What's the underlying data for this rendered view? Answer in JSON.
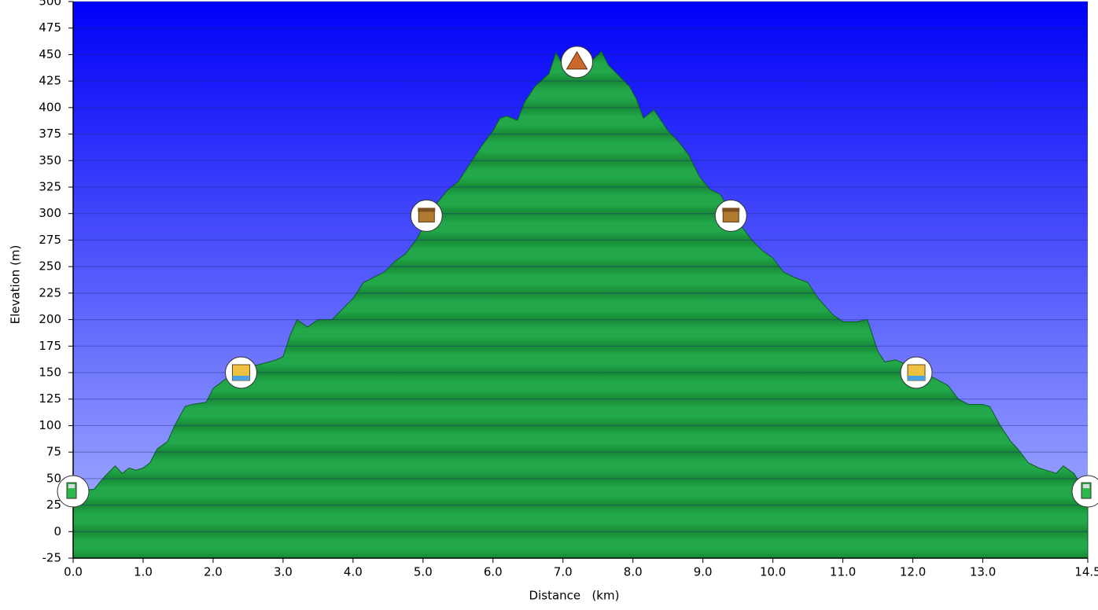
{
  "chart_data": {
    "type": "area",
    "x_label": "Distance   (km)",
    "y_label": "Elevation (m)",
    "xlim": [
      0,
      14.5
    ],
    "ylim": [
      -25,
      500
    ],
    "xticks": [
      {
        "value": 0,
        "label": "0.0"
      },
      {
        "value": 1,
        "label": "1.0"
      },
      {
        "value": 2,
        "label": "2.0"
      },
      {
        "value": 3,
        "label": "3.0"
      },
      {
        "value": 4,
        "label": "4.0"
      },
      {
        "value": 5,
        "label": "5.0"
      },
      {
        "value": 6,
        "label": "6.0"
      },
      {
        "value": 7,
        "label": "7.0"
      },
      {
        "value": 8,
        "label": "8.0"
      },
      {
        "value": 9,
        "label": "9.0"
      },
      {
        "value": 10,
        "label": "10.0"
      },
      {
        "value": 11,
        "label": "11.0"
      },
      {
        "value": 12,
        "label": "12.0"
      },
      {
        "value": 13,
        "label": "13.0"
      },
      {
        "value": 14.5,
        "label": "14.5"
      }
    ],
    "yticks": [
      -25,
      0,
      25,
      50,
      75,
      100,
      125,
      150,
      175,
      200,
      225,
      250,
      275,
      300,
      325,
      350,
      375,
      400,
      425,
      450,
      475,
      500
    ],
    "grid": true,
    "color": "#22a84a",
    "x": [
      0,
      0.3,
      0.45,
      0.6,
      0.7,
      0.8,
      0.9,
      1.0,
      1.1,
      1.2,
      1.35,
      1.45,
      1.6,
      1.7,
      1.9,
      2.0,
      2.2,
      2.5,
      2.8,
      2.9,
      3.0,
      3.1,
      3.2,
      3.35,
      3.5,
      3.7,
      3.85,
      4.0,
      4.15,
      4.3,
      4.45,
      4.6,
      4.75,
      4.9,
      5.05,
      5.2,
      5.35,
      5.5,
      5.7,
      5.85,
      6.0,
      6.1,
      6.2,
      6.35,
      6.45,
      6.6,
      6.8,
      6.9,
      7.0,
      7.2,
      7.35,
      7.55,
      7.65,
      7.8,
      7.95,
      8.05,
      8.15,
      8.3,
      8.4,
      8.5,
      8.65,
      8.8,
      8.95,
      9.1,
      9.25,
      9.4,
      9.55,
      9.7,
      9.85,
      10.0,
      10.15,
      10.3,
      10.5,
      10.65,
      10.85,
      11.0,
      11.2,
      11.35,
      11.5,
      11.6,
      11.75,
      11.9,
      12.1,
      12.3,
      12.5,
      12.65,
      12.8,
      13.0,
      13.1,
      13.25,
      13.4,
      13.5,
      13.65,
      13.8,
      13.9,
      14.05,
      14.15,
      14.3,
      14.45,
      14.5
    ],
    "values": [
      38,
      40,
      52,
      62,
      55,
      60,
      58,
      60,
      65,
      78,
      85,
      100,
      118,
      120,
      122,
      135,
      145,
      155,
      160,
      162,
      165,
      185,
      200,
      193,
      200,
      200,
      210,
      220,
      235,
      240,
      245,
      255,
      262,
      275,
      292,
      310,
      322,
      330,
      350,
      365,
      378,
      390,
      392,
      388,
      405,
      420,
      432,
      452,
      440,
      448,
      440,
      453,
      440,
      430,
      420,
      408,
      390,
      398,
      388,
      378,
      368,
      355,
      335,
      323,
      318,
      300,
      288,
      275,
      265,
      258,
      245,
      240,
      235,
      220,
      205,
      198,
      198,
      200,
      170,
      160,
      162,
      158,
      152,
      145,
      138,
      125,
      120,
      120,
      118,
      100,
      85,
      78,
      65,
      60,
      58,
      55,
      62,
      55,
      40,
      38
    ],
    "markers": {
      "x": [
        0,
        2.4,
        5.05,
        7.2,
        9.4,
        12.05,
        14.5
      ],
      "y": [
        38,
        150,
        298,
        443,
        298,
        150,
        38
      ]
    }
  }
}
